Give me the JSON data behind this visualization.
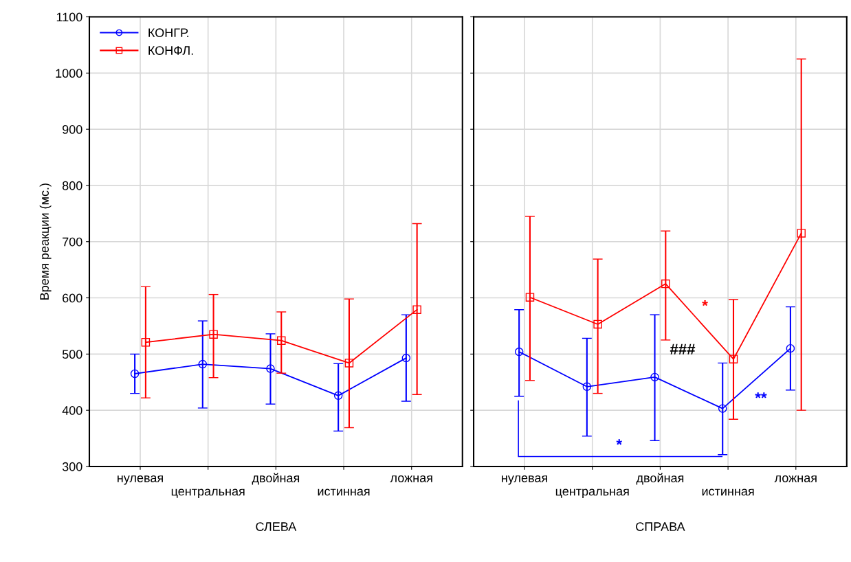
{
  "chart_data": [
    {
      "type": "line",
      "ylabel": "Время реакции (мс.)",
      "xlabel": "СЛЕВА",
      "categories": [
        "нулевая",
        "центральная",
        "двойная",
        "истинная",
        "ложная"
      ],
      "ylim": [
        300,
        1100
      ],
      "yticks": [
        300,
        400,
        500,
        600,
        700,
        800,
        900,
        1000,
        1100
      ],
      "grid": true,
      "legend": "top left",
      "series": [
        {
          "name": "КОНГР.",
          "color": "#0000ff",
          "marker": "circle",
          "values": [
            465,
            482,
            474,
            426,
            493
          ],
          "errors": [
            [
              430,
              500
            ],
            [
              404,
              559
            ],
            [
              411,
              536
            ],
            [
              363,
              483
            ],
            [
              416,
              570
            ]
          ]
        },
        {
          "name": "КОНФЛ.",
          "color": "#ff0000",
          "marker": "square",
          "values": [
            521,
            535,
            524,
            484,
            579
          ],
          "errors": [
            [
              422,
              620
            ],
            [
              458,
              606
            ],
            [
              466,
              575
            ],
            [
              369,
              598
            ],
            [
              428,
              732
            ]
          ]
        }
      ]
    },
    {
      "type": "line",
      "xlabel": "СПРАВА",
      "categories": [
        "нулевая",
        "центральная",
        "двойная",
        "истинная",
        "ложная"
      ],
      "ylim": [
        300,
        1100
      ],
      "yticks": [
        300,
        400,
        500,
        600,
        700,
        800,
        900,
        1000,
        1100
      ],
      "grid": true,
      "tick_labels": "x",
      "series": [
        {
          "color": "#0000ff",
          "marker": "circle",
          "values": [
            504,
            442,
            459,
            403,
            510
          ],
          "errors": [
            [
              425,
              579
            ],
            [
              354,
              528
            ],
            [
              346,
              570
            ],
            [
              321,
              484
            ],
            [
              436,
              584
            ]
          ]
        },
        {
          "color": "#ff0000",
          "marker": "square",
          "values": [
            601,
            553,
            625,
            491,
            715
          ],
          "errors": [
            [
              453,
              745
            ],
            [
              430,
              669
            ],
            [
              525,
              719
            ],
            [
              384,
              597
            ],
            [
              400,
              1025
            ]
          ]
        }
      ],
      "annotations": [
        "*",
        "###",
        "*",
        "**"
      ]
    }
  ]
}
